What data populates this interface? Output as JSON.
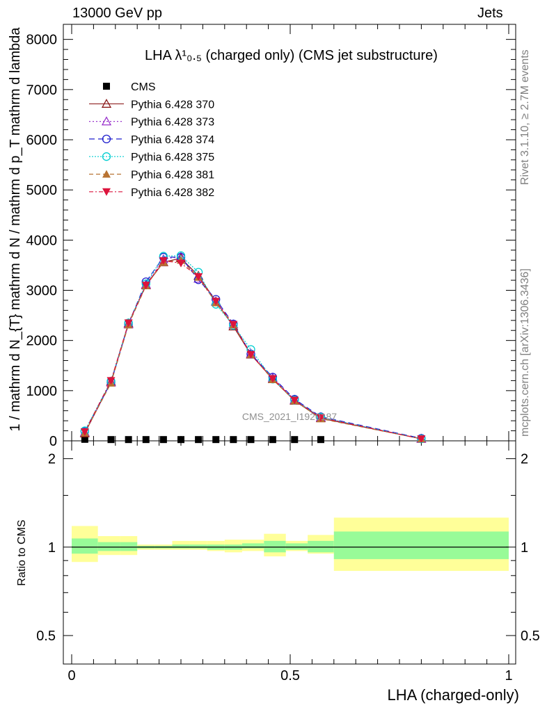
{
  "header": {
    "left": "13000 GeV pp",
    "right": "Jets"
  },
  "side_text": {
    "rivet": "Rivet 3.1.10, ≥ 2.7M events",
    "mcplots": "mcplots.cern.ch [arXiv:1306.3436]"
  },
  "watermark": "CMS_2021_I1920187",
  "chart_data": {
    "type": "line",
    "title": "LHA λ¹₀.₅ (charged only) (CMS jet substructure)",
    "xlabel": "LHA (charged-only)",
    "ylabel": "1 / mathrm d N_{T} mathrm d N / mathrm d p_T mathrm d lambda",
    "xlim": [
      0,
      1
    ],
    "ylim": [
      0,
      8300
    ],
    "x_ticks": [
      0,
      0.5,
      1
    ],
    "y_ticks": [
      0,
      1000,
      2000,
      3000,
      4000,
      5000,
      6000,
      7000,
      8000
    ],
    "y_tick_labels": [
      "0",
      "1000",
      "2000",
      "3000",
      "4000",
      "5000",
      "6000",
      "7000",
      "8000"
    ],
    "x": [
      0.03,
      0.09,
      0.13,
      0.17,
      0.21,
      0.25,
      0.29,
      0.33,
      0.37,
      0.41,
      0.46,
      0.51,
      0.57,
      0.8
    ],
    "bin_edges": [
      0,
      0.06,
      0.11,
      0.15,
      0.19,
      0.23,
      0.27,
      0.31,
      0.35,
      0.39,
      0.44,
      0.49,
      0.54,
      0.6,
      1.0
    ],
    "series": [
      {
        "name": "CMS",
        "values": [
          30,
          25,
          25,
          25,
          25,
          25,
          25,
          25,
          25,
          25,
          25,
          25,
          25,
          null
        ]
      },
      {
        "name": "Pythia 6.428 370",
        "values": [
          150,
          1180,
          2340,
          3100,
          3560,
          3640,
          3290,
          2780,
          2280,
          1720,
          1230,
          800,
          450,
          40
        ]
      },
      {
        "name": "Pythia 6.428 373",
        "values": [
          170,
          1160,
          2320,
          3120,
          3620,
          3670,
          3230,
          2770,
          2320,
          1740,
          1260,
          820,
          470,
          40
        ]
      },
      {
        "name": "Pythia 6.428 374",
        "values": [
          190,
          1170,
          2330,
          3170,
          3660,
          3660,
          3210,
          2820,
          2330,
          1730,
          1270,
          830,
          480,
          50
        ]
      },
      {
        "name": "Pythia 6.428 375",
        "values": [
          200,
          1190,
          2350,
          3130,
          3680,
          3690,
          3360,
          2720,
          2300,
          1820,
          1230,
          810,
          470,
          40
        ]
      },
      {
        "name": "Pythia 6.428 381",
        "values": [
          160,
          1150,
          2310,
          3090,
          3560,
          3600,
          3260,
          2750,
          2310,
          1720,
          1220,
          800,
          440,
          40
        ]
      },
      {
        "name": "Pythia 6.428 382",
        "values": [
          180,
          1200,
          2350,
          3100,
          3590,
          3540,
          3270,
          2780,
          2320,
          1720,
          1240,
          810,
          460,
          40
        ]
      }
    ],
    "ratio_panel": {
      "ylabel": "Ratio to CMS",
      "ylim": [
        0.4,
        2.3
      ],
      "y_ticks": [
        0.5,
        1,
        2
      ],
      "y_tick_labels": [
        "0.5",
        "1",
        "2"
      ],
      "band_stat_lo": [
        0.95,
        0.97,
        0.97,
        0.99,
        0.99,
        0.99,
        0.99,
        0.98,
        0.98,
        0.99,
        0.96,
        0.98,
        0.96,
        0.91
      ],
      "band_stat_hi": [
        1.07,
        1.04,
        1.04,
        1.01,
        1.01,
        1.02,
        1.02,
        1.02,
        1.02,
        1.03,
        1.05,
        1.03,
        1.05,
        1.13
      ],
      "band_tot_lo": [
        0.89,
        0.94,
        0.94,
        0.98,
        0.98,
        0.98,
        0.98,
        0.97,
        0.96,
        0.97,
        0.93,
        0.97,
        0.95,
        0.83
      ],
      "band_tot_hi": [
        1.18,
        1.09,
        1.09,
        1.02,
        1.02,
        1.05,
        1.05,
        1.05,
        1.06,
        1.06,
        1.11,
        1.05,
        1.1,
        1.26
      ]
    }
  },
  "colors": {
    "cms": "#000000",
    "p370": "#8b1a1a",
    "p373": "#9932cc",
    "p374": "#1e1ecd",
    "p375": "#00ced1",
    "p381": "#b87333",
    "p382": "#dc143c",
    "band_stat": "#98fb98",
    "band_tot": "#ffff99"
  }
}
